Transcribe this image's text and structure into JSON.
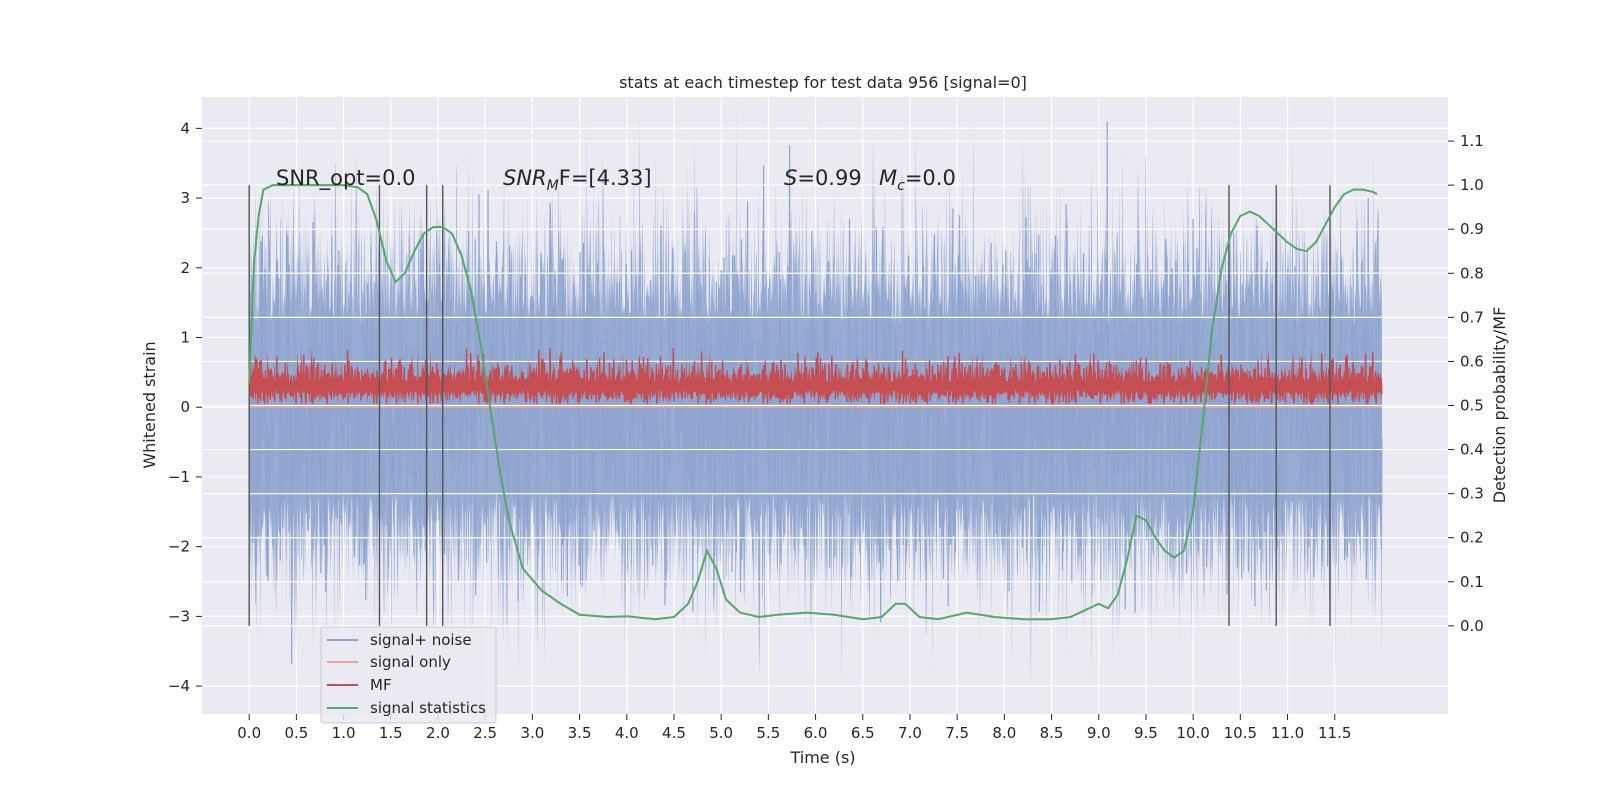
{
  "chart_data": {
    "type": "line",
    "title": "stats at each timestep for test data 956 [signal=0]",
    "xlabel": "Time (s)",
    "ylabel_left": "Whitened strain",
    "ylabel_right": "Detection probability/MF",
    "xlim": [
      -0.5,
      12.7
    ],
    "ylim_left": [
      -4.4,
      4.45
    ],
    "ylim_right": [
      -0.2,
      1.2
    ],
    "x_ticks": [
      "0.0",
      "0.5",
      "1.0",
      "1.5",
      "2.0",
      "2.5",
      "3.0",
      "3.5",
      "4.0",
      "4.5",
      "5.0",
      "5.5",
      "6.0",
      "6.5",
      "7.0",
      "7.5",
      "8.0",
      "8.5",
      "9.0",
      "9.5",
      "10.0",
      "10.5",
      "11.0",
      "11.5"
    ],
    "y_left_ticks": [
      "−4",
      "−3",
      "−2",
      "−1",
      "0",
      "1",
      "2",
      "3",
      "4"
    ],
    "y_right_ticks": [
      "0.0",
      "0.1",
      "0.2",
      "0.3",
      "0.4",
      "0.5",
      "0.6",
      "0.7",
      "0.8",
      "0.9",
      "1.0",
      "1.1"
    ],
    "annotations": {
      "snr_opt": "SNR_opt=0.0",
      "snr_mf_sym": "SNR",
      "snr_mf_sub": "M",
      "snr_mf_rest": "F=[4.33]",
      "s_sym": "S",
      "s_val": "=0.99",
      "mc_sym": "M",
      "mc_sub": "c",
      "mc_val": "=0.0"
    },
    "legend": [
      {
        "label": "signal+ noise",
        "color": "#8fa5cf"
      },
      {
        "label": "signal only",
        "color": "#e6a98e"
      },
      {
        "label": "MF",
        "color": "#c44e52"
      },
      {
        "label": "signal statistics",
        "color": "#55a868"
      }
    ],
    "series": [
      {
        "name": "signal+ noise",
        "axis": "left",
        "x_range": [
          0,
          12
        ],
        "amplitude_std": 1.0,
        "envelope_max": 4.1,
        "envelope_min": -3.95
      },
      {
        "name": "signal only",
        "axis": "left",
        "values": [
          0,
          0
        ]
      },
      {
        "name": "MF",
        "axis": "left",
        "x_range": [
          0,
          12
        ],
        "baseline": 0.3,
        "range": [
          0.05,
          0.85
        ]
      },
      {
        "name": "signal statistics",
        "axis": "right",
        "x": [
          0.0,
          0.05,
          0.1,
          0.15,
          0.25,
          0.5,
          0.75,
          1.0,
          1.15,
          1.25,
          1.35,
          1.45,
          1.55,
          1.65,
          1.75,
          1.85,
          1.95,
          2.05,
          2.15,
          2.25,
          2.35,
          2.45,
          2.55,
          2.65,
          2.75,
          2.9,
          3.1,
          3.3,
          3.5,
          3.8,
          4.0,
          4.3,
          4.5,
          4.65,
          4.75,
          4.85,
          4.95,
          5.05,
          5.2,
          5.4,
          5.6,
          5.9,
          6.2,
          6.5,
          6.7,
          6.85,
          6.95,
          7.1,
          7.3,
          7.6,
          7.9,
          8.2,
          8.5,
          8.7,
          8.9,
          9.0,
          9.1,
          9.2,
          9.3,
          9.4,
          9.5,
          9.6,
          9.7,
          9.8,
          9.9,
          10.0,
          10.1,
          10.2,
          10.3,
          10.4,
          10.5,
          10.6,
          10.7,
          10.8,
          10.9,
          11.0,
          11.1,
          11.2,
          11.3,
          11.4,
          11.5,
          11.6,
          11.7,
          11.8,
          11.9,
          11.95
        ],
        "values": [
          0.55,
          0.82,
          0.93,
          0.99,
          1.0,
          1.0,
          1.0,
          1.0,
          0.995,
          0.98,
          0.92,
          0.83,
          0.78,
          0.8,
          0.85,
          0.89,
          0.905,
          0.905,
          0.89,
          0.84,
          0.76,
          0.64,
          0.5,
          0.36,
          0.24,
          0.13,
          0.08,
          0.05,
          0.025,
          0.02,
          0.022,
          0.015,
          0.02,
          0.05,
          0.1,
          0.17,
          0.13,
          0.06,
          0.03,
          0.02,
          0.025,
          0.03,
          0.025,
          0.015,
          0.02,
          0.05,
          0.05,
          0.02,
          0.015,
          0.03,
          0.02,
          0.015,
          0.015,
          0.02,
          0.04,
          0.05,
          0.04,
          0.07,
          0.15,
          0.25,
          0.24,
          0.2,
          0.17,
          0.155,
          0.17,
          0.26,
          0.46,
          0.67,
          0.81,
          0.89,
          0.93,
          0.94,
          0.93,
          0.91,
          0.89,
          0.87,
          0.855,
          0.85,
          0.87,
          0.91,
          0.95,
          0.98,
          0.99,
          0.99,
          0.985,
          0.98
        ]
      }
    ],
    "vertical_markers": [
      0.0,
      1.38,
      1.88,
      2.05,
      10.38,
      10.88,
      11.45
    ]
  }
}
